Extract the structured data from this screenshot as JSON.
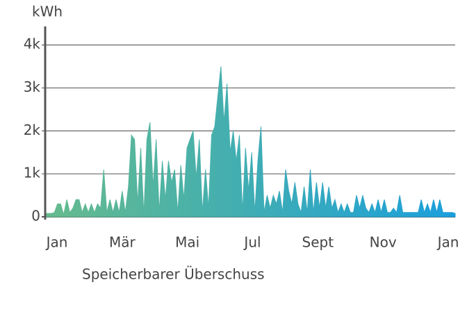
{
  "chart_data": {
    "type": "area",
    "y_label": "kWh",
    "x_labels": [
      "Jan",
      "Mär",
      "Mai",
      "Jul",
      "Sept",
      "Nov",
      "Jan"
    ],
    "series": [
      {
        "name": "Speicherbarer Überschuss",
        "gradient": [
          "#66bb8c",
          "#1a9fdc"
        ],
        "values": [
          80,
          80,
          80,
          100,
          300,
          300,
          50,
          400,
          100,
          200,
          400,
          400,
          100,
          300,
          100,
          300,
          100,
          300,
          200,
          1100,
          100,
          400,
          100,
          400,
          100,
          600,
          100,
          700,
          1900,
          1800,
          300,
          1600,
          50,
          1800,
          2200,
          700,
          1800,
          100,
          1300,
          400,
          1300,
          800,
          1100,
          100,
          1200,
          400,
          1600,
          1800,
          2000,
          900,
          1800,
          100,
          1100,
          200,
          1900,
          2100,
          2800,
          3500,
          2200,
          3100,
          1500,
          2000,
          1300,
          1900,
          100,
          1600,
          600,
          1500,
          100,
          1300,
          2100,
          100,
          500,
          200,
          500,
          300,
          600,
          100,
          1100,
          600,
          300,
          800,
          300,
          100,
          700,
          100,
          1100,
          100,
          800,
          200,
          800,
          200,
          700,
          200,
          400,
          100,
          300,
          100,
          300,
          100,
          100,
          500,
          200,
          500,
          200,
          100,
          300,
          100,
          400,
          100,
          400,
          100,
          100,
          200,
          100,
          500,
          100,
          100,
          100,
          100,
          100,
          100,
          400,
          100,
          300,
          100,
          400,
          100,
          400,
          100,
          100,
          100,
          100,
          80
        ]
      }
    ],
    "ylim": [
      0,
      4400
    ],
    "yticks": [
      0,
      {
        "value": 1000,
        "label": "1k"
      },
      {
        "value": 2000,
        "label": "2k"
      },
      {
        "value": 3000,
        "label": "3k"
      },
      {
        "value": 4000,
        "label": "4k"
      }
    ],
    "grid": true
  }
}
